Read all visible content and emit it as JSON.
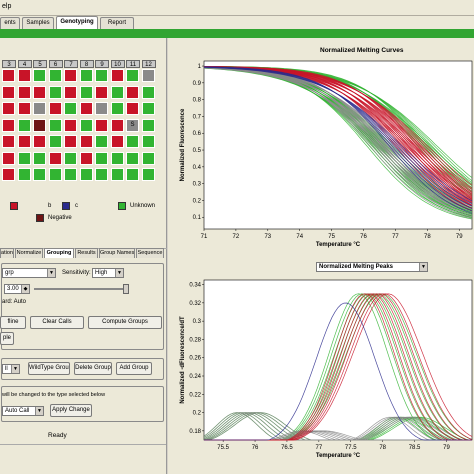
{
  "menu": {
    "help": "elp"
  },
  "tabs": [
    {
      "label": "ents",
      "active": false
    },
    {
      "label": "Samples",
      "active": false
    },
    {
      "label": "Genotyping",
      "active": true
    },
    {
      "label": "Report",
      "active": false
    }
  ],
  "plate": {
    "columns": [
      "3",
      "4",
      "5",
      "6",
      "7",
      "8",
      "9",
      "10",
      "11",
      "12"
    ],
    "rows": [
      [
        "R",
        "R",
        "G",
        "G",
        "R",
        "G",
        "G",
        "R",
        "G",
        "N"
      ],
      [
        "R",
        "R",
        "R",
        "G",
        "R",
        "G",
        "R",
        "G",
        "R",
        "G"
      ],
      [
        "R",
        "R",
        "N",
        "R",
        "G",
        "R",
        "N",
        "G",
        "R",
        "G"
      ],
      [
        "R",
        "G",
        "D",
        "G",
        "R",
        "G",
        "R",
        "R",
        "S",
        "G"
      ],
      [
        "R",
        "R",
        "R",
        "G",
        "R",
        "R",
        "G",
        "R",
        "G",
        "G"
      ],
      [
        "R",
        "G",
        "G",
        "R",
        "G",
        "R",
        "G",
        "G",
        "G",
        "G"
      ],
      [
        "R",
        "G",
        "G",
        "G",
        "G",
        "G",
        "G",
        "G",
        "G",
        "G"
      ]
    ],
    "well_mark_label": "S",
    "colors": {
      "R": "#c81428",
      "G": "#32b432",
      "N": "#8a8a8a",
      "D": "#6e1414",
      "S": "#8a8a8a"
    }
  },
  "legend": {
    "b": "b",
    "c": "c",
    "negative": "Negative",
    "unknown": "Unknown"
  },
  "subtabs": [
    {
      "label": "ation",
      "active": false
    },
    {
      "label": "Normalize",
      "active": false
    },
    {
      "label": "Grouping",
      "active": true
    },
    {
      "label": "Results",
      "active": false
    },
    {
      "label": "Group Names",
      "active": false
    },
    {
      "label": "Sequence",
      "active": false
    }
  ],
  "controls": {
    "grouping_combo": "grp",
    "sensitivity_label": "Sensitivity:",
    "sensitivity_value": "High",
    "spinner_value": "3.00",
    "auto_text": "ard:  Auto",
    "btn_ofline": "fline",
    "btn_clear_calls": "Clear Calls",
    "btn_compute_groups": "Compute Groups",
    "btn_sample": "ple",
    "btn_wildtype_group": "WildType Group",
    "btn_delete_group": "Delete Group",
    "btn_add_group": "Add Group",
    "change_text": "will be changed to the type selected below",
    "auto_call_combo": "Auto Call",
    "btn_apply_change": "Apply Change",
    "status": "Ready"
  },
  "chart_data": [
    {
      "type": "line",
      "title": "Normalized Melting Curves",
      "xlabel": "Temperature °C",
      "ylabel": "Normalized Fluorescence",
      "x_ticks": [
        "71",
        "72",
        "73",
        "74",
        "75",
        "76",
        "77",
        "78",
        "79"
      ],
      "y_ticks": [
        "1",
        "0.9",
        "0.8",
        "0.7",
        "0.6",
        "0.5",
        "0.4",
        "0.3",
        "0.2",
        "0.1"
      ],
      "xlim": [
        71,
        79.4
      ],
      "ylim": [
        0.03,
        1.03
      ],
      "series": [
        {
          "color": "#32b432",
          "tm": [
            76.3,
            76.5,
            76.7,
            77.9,
            78.1
          ]
        },
        {
          "color": "#8a8a8a",
          "tm": [
            76.4,
            76.6,
            76.8
          ]
        },
        {
          "color": "#c81428",
          "tm": [
            77.2,
            77.4,
            77.6,
            77.8
          ]
        },
        {
          "color": "#2a2a8c",
          "tm": [
            77.0
          ]
        }
      ]
    },
    {
      "type": "line",
      "title": "Normalized Melting Peaks",
      "xlabel": "Temperature °C",
      "ylabel": "Normalized -dFluorescence/dT",
      "x_ticks": [
        "75.5",
        "76",
        "76.5",
        "77",
        "77.5",
        "78",
        "78.5",
        "79"
      ],
      "y_ticks": [
        "0.34",
        "0.32",
        "0.3",
        "0.28",
        "0.26",
        "0.24",
        "0.22",
        "0.2",
        "0.18"
      ],
      "xlim": [
        75.2,
        79.4
      ],
      "ylim": [
        0.17,
        0.345
      ],
      "series": [
        {
          "color": "#32b432",
          "peaks": [
            [
              77.8,
              0.33
            ],
            [
              75.9,
              0.2
            ],
            [
              78.4,
              0.195
            ]
          ]
        },
        {
          "color": "#8a8a8a",
          "peaks": [
            [
              75.9,
              0.2
            ],
            [
              78.3,
              0.195
            ],
            [
              76.9,
              0.18
            ]
          ]
        },
        {
          "color": "#c81428",
          "peaks": [
            [
              77.9,
              0.33
            ]
          ]
        },
        {
          "color": "#2a2a8c",
          "peaks": [
            [
              77.6,
              0.32
            ]
          ]
        }
      ]
    }
  ]
}
